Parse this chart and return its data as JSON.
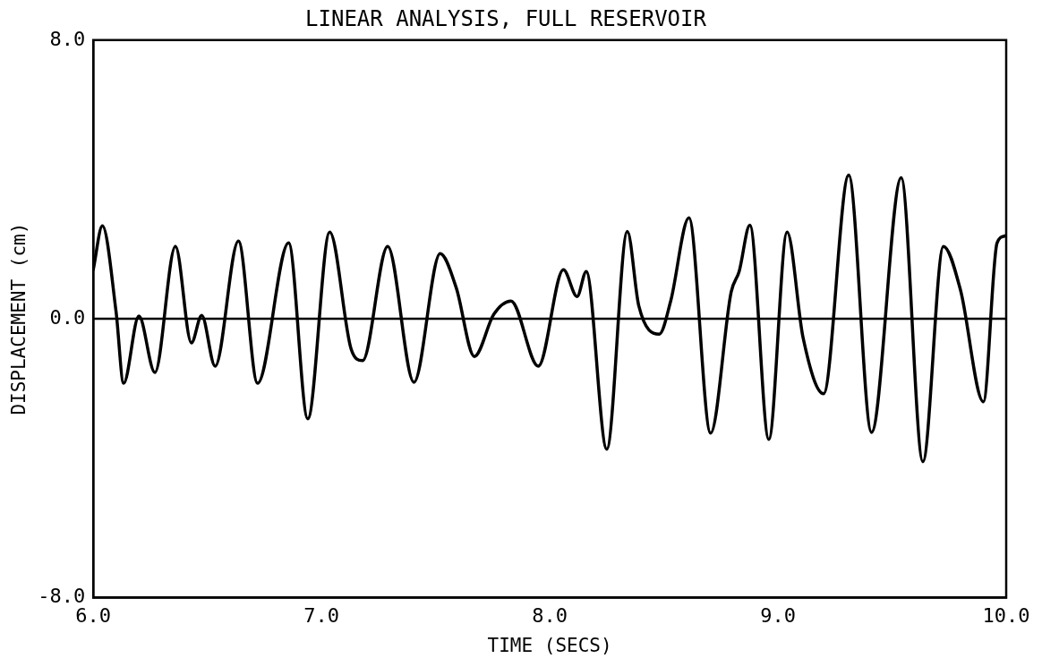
{
  "chart_data": {
    "type": "line",
    "title": "LINEAR ANALYSIS, FULL RESERVOIR",
    "xlabel": "TIME (SECS)",
    "ylabel": "DISPLACEMENT (cm)",
    "xlim": [
      6.0,
      10.0
    ],
    "xticks": [
      {
        "value": 6,
        "label": "6.0"
      },
      {
        "value": 7,
        "label": "7.0"
      },
      {
        "value": 8,
        "label": "8.0"
      },
      {
        "value": 9,
        "label": "9.0"
      },
      {
        "value": 10,
        "label": "10.0"
      }
    ],
    "ylim": [
      -8.0,
      8.0
    ],
    "yticks": [
      {
        "value": -8,
        "label": "-8.0"
      },
      {
        "value": 0,
        "label": "0.0"
      },
      {
        "value": 8,
        "label": "8.0"
      }
    ],
    "grid": false,
    "legend": false,
    "marker": "none",
    "line_style": "solid",
    "ref_lines": [
      {
        "axis": "y",
        "value": 0,
        "color": "#000000"
      }
    ],
    "series": [
      {
        "color": "#000000",
        "x": [
          6.0,
          6.04,
          6.1,
          6.133,
          6.2,
          6.27,
          6.36,
          6.43,
          6.475,
          6.534,
          6.636,
          6.72,
          6.856,
          6.94,
          7.036,
          7.13,
          7.18,
          7.29,
          7.405,
          7.52,
          7.59,
          7.67,
          7.755,
          7.83,
          7.95,
          8.06,
          8.12,
          8.16,
          8.25,
          8.34,
          8.39,
          8.48,
          8.53,
          8.61,
          8.705,
          8.795,
          8.83,
          8.877,
          8.96,
          9.04,
          9.11,
          9.2,
          9.31,
          9.41,
          9.54,
          9.635,
          9.725,
          9.8,
          9.9,
          9.96,
          9.995
        ],
        "values": [
          1.41,
          2.67,
          0.2,
          -1.85,
          0.08,
          -1.54,
          2.08,
          -0.69,
          0.1,
          -1.36,
          2.23,
          -1.85,
          2.18,
          -2.87,
          2.49,
          -0.87,
          -1.2,
          2.08,
          -1.82,
          1.87,
          0.9,
          -1.08,
          0.13,
          0.51,
          -1.36,
          1.41,
          0.64,
          1.36,
          -3.74,
          2.51,
          0.38,
          -0.44,
          0.51,
          2.9,
          -3.28,
          0.77,
          1.36,
          2.69,
          -3.46,
          2.49,
          -0.54,
          -2.15,
          4.13,
          -3.26,
          4.05,
          -4.1,
          2.08,
          0.82,
          -2.38,
          2.18,
          2.38
        ]
      }
    ]
  }
}
